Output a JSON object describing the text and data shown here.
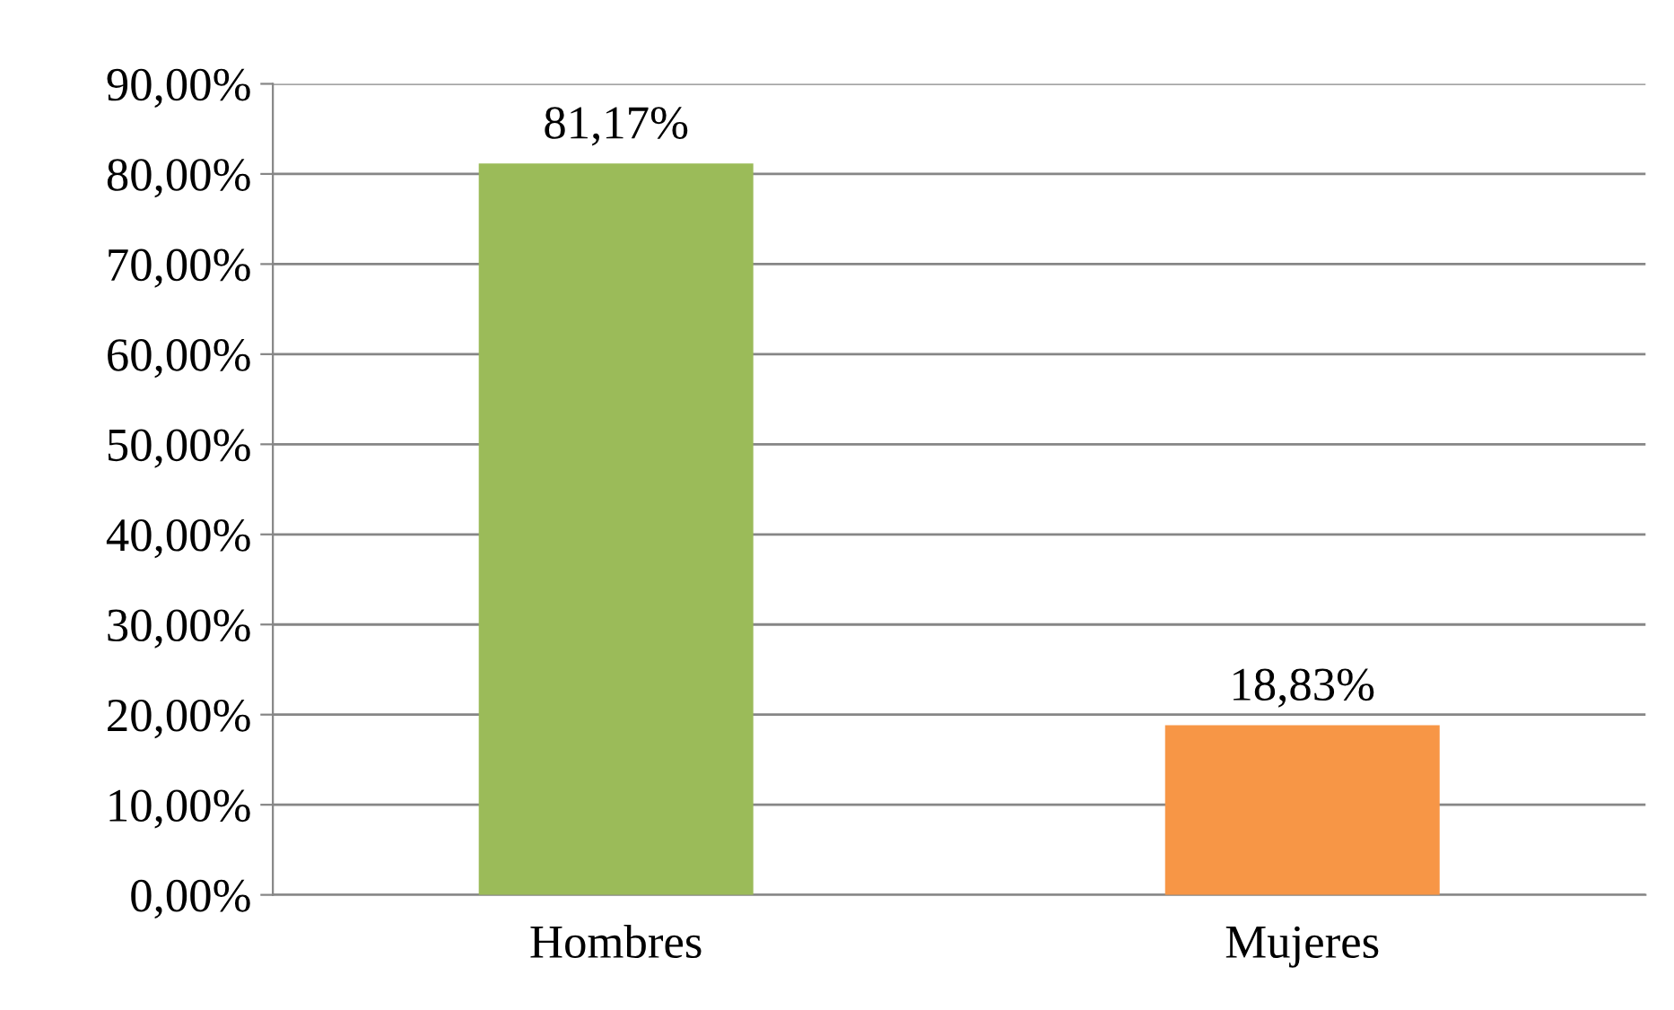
{
  "chart_data": {
    "type": "bar",
    "categories": [
      "Hombres",
      "Mujeres"
    ],
    "values": [
      81.17,
      18.83
    ],
    "colors": [
      "#9bbb59",
      "#f79646"
    ],
    "value_labels": [
      "81,17%",
      "18,83%"
    ],
    "ylim": [
      0,
      90
    ],
    "yticks": [
      {
        "value": 0,
        "label": "0,00%"
      },
      {
        "value": 10,
        "label": "10,00%"
      },
      {
        "value": 20,
        "label": "20,00%"
      },
      {
        "value": 30,
        "label": "30,00%"
      },
      {
        "value": 40,
        "label": "40,00%"
      },
      {
        "value": 50,
        "label": "50,00%"
      },
      {
        "value": 60,
        "label": "60,00%"
      },
      {
        "value": 70,
        "label": "70,00%"
      },
      {
        "value": 80,
        "label": "80,00%"
      },
      {
        "value": 90,
        "label": "90,00%"
      }
    ],
    "grid": "y"
  }
}
